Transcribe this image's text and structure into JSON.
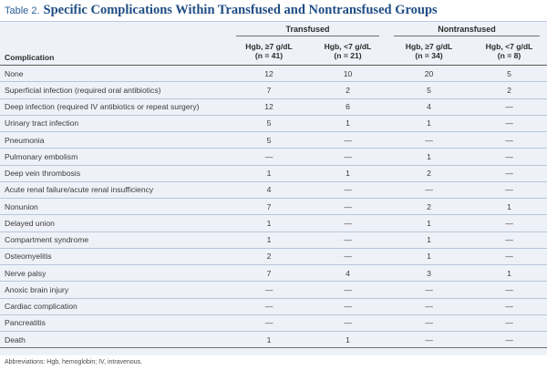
{
  "table_label": "Table 2.",
  "title": "Specific Complications Within Transfused and Nontransfused Groups",
  "groups": [
    "Transfused",
    "Nontransfused"
  ],
  "column_headers": {
    "complication": "Complication",
    "t_high": [
      "Hgb, ≥7 g/dL",
      "(n = 41)"
    ],
    "t_low": [
      "Hgb, <7 g/dL",
      "(n = 21)"
    ],
    "n_high": [
      "Hgb, ≥7 g/dL",
      "(n = 34)"
    ],
    "n_low": [
      "Hgb, <7 g/dL",
      "(n = 8)"
    ]
  },
  "rows": [
    {
      "name": "None",
      "values": [
        "12",
        "10",
        "20",
        "5"
      ]
    },
    {
      "name": "Superficial infection (required oral antibiotics)",
      "values": [
        "7",
        "2",
        "5",
        "2"
      ]
    },
    {
      "name": "Deep infection (required IV antibiotics or repeat surgery)",
      "values": [
        "12",
        "6",
        "4",
        "—"
      ]
    },
    {
      "name": "Urinary tract infection",
      "values": [
        "5",
        "1",
        "1",
        "—"
      ]
    },
    {
      "name": "Pneumonia",
      "values": [
        "5",
        "—",
        "—",
        "—"
      ]
    },
    {
      "name": "Pulmonary embolism",
      "values": [
        "—",
        "—",
        "1",
        "—"
      ]
    },
    {
      "name": "Deep vein thrombosis",
      "values": [
        "1",
        "1",
        "2",
        "—"
      ]
    },
    {
      "name": "Acute renal failure/acute renal insufficiency",
      "values": [
        "4",
        "—",
        "—",
        "—"
      ]
    },
    {
      "name": "Nonunion",
      "values": [
        "7",
        "—",
        "2",
        "1"
      ]
    },
    {
      "name": "Delayed union",
      "values": [
        "1",
        "—",
        "1",
        "—"
      ]
    },
    {
      "name": "Compartment syndrome",
      "values": [
        "1",
        "—",
        "1",
        "—"
      ]
    },
    {
      "name": "Osteomyelitis",
      "values": [
        "2",
        "—",
        "1",
        "—"
      ]
    },
    {
      "name": "Nerve palsy",
      "values": [
        "7",
        "4",
        "3",
        "1"
      ]
    },
    {
      "name": "Anoxic brain injury",
      "values": [
        "—",
        "—",
        "—",
        "—"
      ]
    },
    {
      "name": "Cardiac complication",
      "values": [
        "—",
        "—",
        "—",
        "—"
      ]
    },
    {
      "name": "Pancreatitis",
      "values": [
        "—",
        "—",
        "—",
        "—"
      ]
    },
    {
      "name": "Death",
      "values": [
        "1",
        "1",
        "—",
        "—"
      ]
    }
  ],
  "footnote": "Abbreviations: Hgb, hemoglobin; IV, intravenous."
}
